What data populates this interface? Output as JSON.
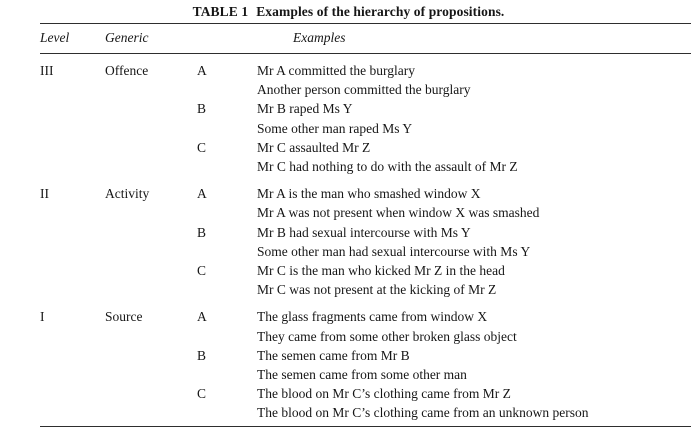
{
  "table": {
    "title_label": "TABLE 1",
    "title_text": "Examples of the hierarchy of propositions.",
    "headers": {
      "level": "Level",
      "generic": "Generic",
      "examples": "Examples"
    },
    "sections": [
      {
        "level": "III",
        "generic": "Offence",
        "items": [
          {
            "letter": "A",
            "lines": [
              "Mr A committed the burglary",
              "Another person committed the burglary"
            ]
          },
          {
            "letter": "B",
            "lines": [
              "Mr B raped Ms Y",
              "Some other man raped Ms Y"
            ]
          },
          {
            "letter": "C",
            "lines": [
              "Mr C assaulted Mr Z",
              "Mr C had nothing to do with the assault of Mr Z"
            ]
          }
        ]
      },
      {
        "level": "II",
        "generic": "Activity",
        "items": [
          {
            "letter": "A",
            "lines": [
              "Mr A is the man who smashed window X",
              "Mr A was not present when window X was smashed"
            ]
          },
          {
            "letter": "B",
            "lines": [
              "Mr B had sexual intercourse with Ms Y",
              "Some other man had sexual intercourse with Ms Y"
            ]
          },
          {
            "letter": "C",
            "lines": [
              "Mr C is the man who kicked Mr Z in the head",
              "Mr C was not present at the kicking of Mr Z"
            ]
          }
        ]
      },
      {
        "level": "I",
        "generic": "Source",
        "items": [
          {
            "letter": "A",
            "lines": [
              "The glass fragments came from window X",
              "They came from some other broken glass object"
            ]
          },
          {
            "letter": "B",
            "lines": [
              "The semen came from Mr B",
              "The semen came from some other man"
            ]
          },
          {
            "letter": "C",
            "lines": [
              "The blood on Mr C’s clothing came from Mr Z",
              "The blood on Mr C’s clothing came from an unknown person"
            ]
          }
        ]
      }
    ]
  }
}
